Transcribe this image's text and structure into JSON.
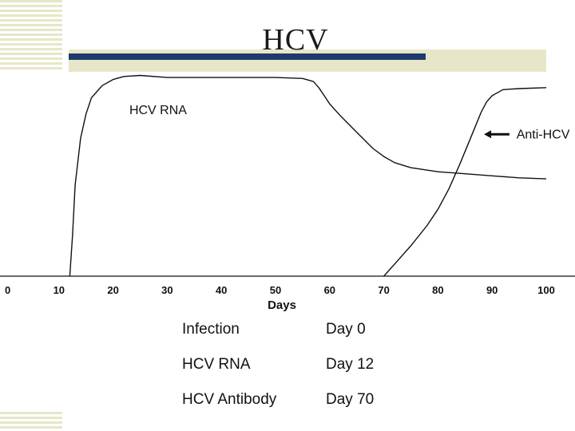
{
  "slide": {
    "title": "HCV"
  },
  "chart_data": {
    "type": "line",
    "xlabel": "Days",
    "ylabel": "",
    "xlim": [
      0,
      100
    ],
    "ylim": [
      0,
      100
    ],
    "y_axis_shown": false,
    "x_ticks": [
      0,
      10,
      20,
      30,
      40,
      50,
      60,
      70,
      80,
      90,
      100
    ],
    "grid": false,
    "series": [
      {
        "name": "HCV RNA",
        "x": [
          12,
          12.5,
          13,
          14,
          15,
          16,
          18,
          20,
          22,
          25,
          30,
          40,
          50,
          55,
          57,
          58,
          59,
          60,
          62,
          65,
          68,
          70,
          72,
          75,
          80,
          85,
          90,
          95,
          100
        ],
        "y": [
          0,
          20,
          45,
          68,
          80,
          88,
          94,
          97,
          98.5,
          99,
          98,
          98,
          98,
          97.5,
          96,
          93,
          89,
          85,
          79,
          71,
          63,
          59,
          56,
          53.5,
          51.5,
          50.5,
          49.5,
          48.5,
          48
        ]
      },
      {
        "name": "Anti-HCV",
        "x": [
          70,
          72,
          75,
          78,
          80,
          82,
          84,
          86,
          88,
          89,
          90,
          92,
          95,
          100
        ],
        "y": [
          0,
          6,
          15,
          25,
          33,
          43,
          55,
          68,
          81,
          86,
          89,
          92,
          92.5,
          93
        ]
      }
    ],
    "annotations": [
      {
        "text": "HCV RNA"
      },
      {
        "text": "Anti-HCV"
      }
    ]
  },
  "events": [
    {
      "label": "Infection",
      "day": "Day 0"
    },
    {
      "label": "HCV RNA",
      "day": "Day 12"
    },
    {
      "label": "HCV Antibody",
      "day": "Day 70"
    }
  ]
}
